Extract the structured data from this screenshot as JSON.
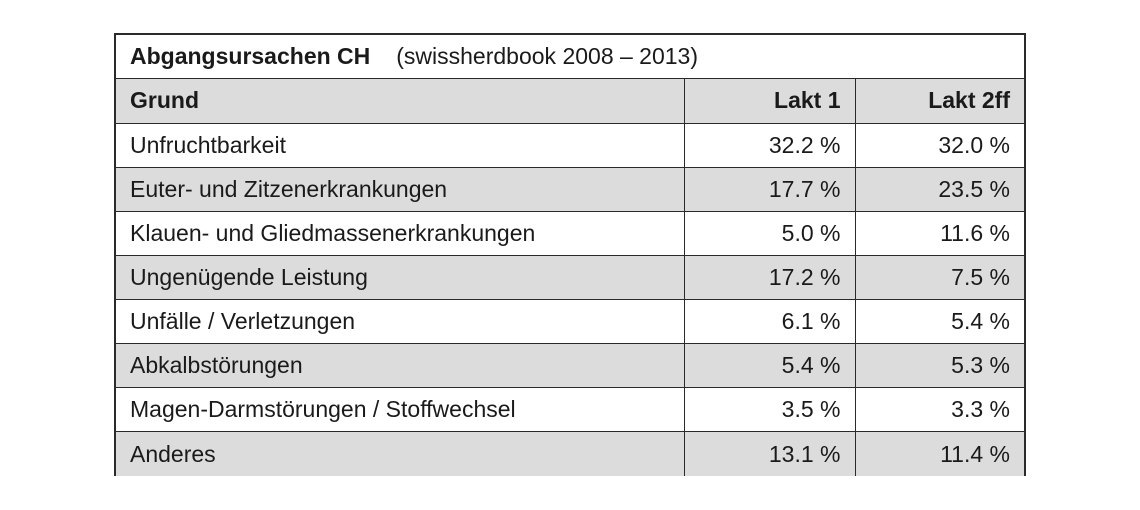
{
  "caption": {
    "title": "Abgangsursachen CH",
    "subtitle": "(swissherdbook 2008 – 2013)"
  },
  "columns": [
    "Grund",
    "Lakt 1",
    "Lakt 2ff"
  ],
  "rows": [
    {
      "grund": "Unfruchtbarkeit",
      "lakt1": "32.2 %",
      "lakt2ff": "32.0 %"
    },
    {
      "grund": "Euter- und Zitzenerkrankungen",
      "lakt1": "17.7 %",
      "lakt2ff": "23.5 %"
    },
    {
      "grund": "Klauen- und Gliedmassenerkrankungen",
      "lakt1": "5.0 %",
      "lakt2ff": "11.6 %"
    },
    {
      "grund": "Ungenügende Leistung",
      "lakt1": "17.2 %",
      "lakt2ff": "7.5 %"
    },
    {
      "grund": "Unfälle / Verletzungen",
      "lakt1": "6.1 %",
      "lakt2ff": "5.4 %"
    },
    {
      "grund": "Abkalbstörungen",
      "lakt1": "5.4 %",
      "lakt2ff": "5.3 %"
    },
    {
      "grund": "Magen-Darmstörungen / Stoffwechsel",
      "lakt1": "3.5 %",
      "lakt2ff": "3.3 %"
    },
    {
      "grund": "Anderes",
      "lakt1": "13.1 %",
      "lakt2ff": "11.4 %"
    }
  ],
  "colors": {
    "shade": "#dcdcdc",
    "border": "#2a2a2a"
  }
}
